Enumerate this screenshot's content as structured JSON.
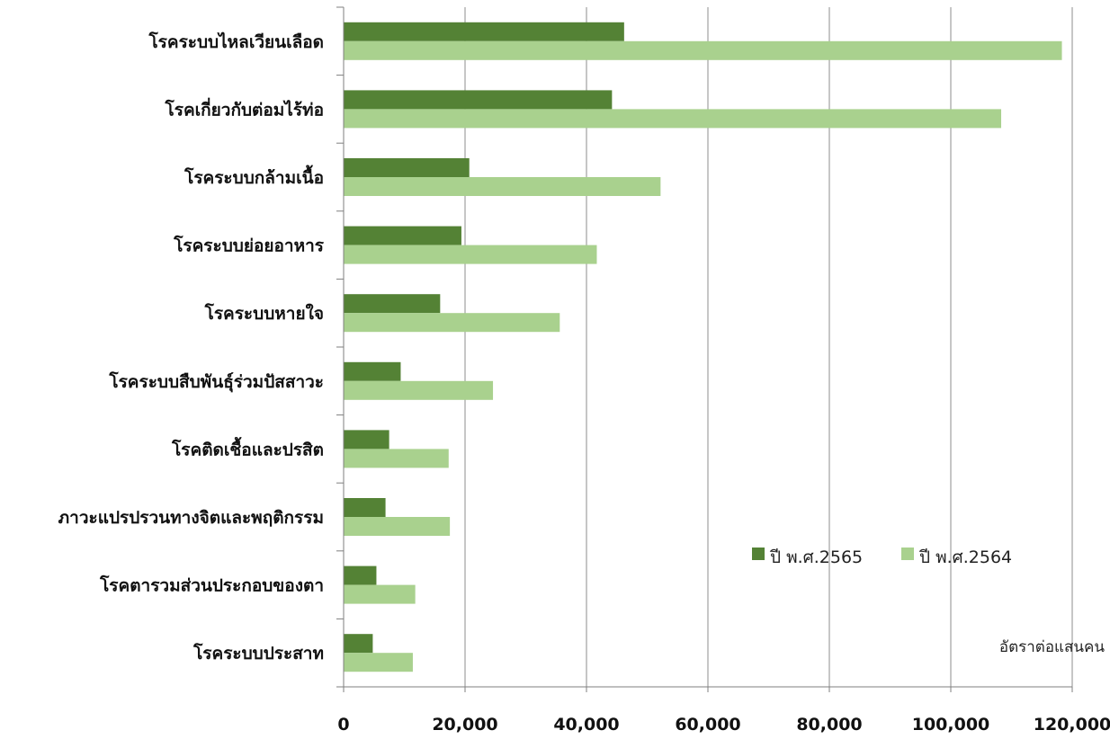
{
  "chart_data": {
    "type": "bar",
    "orientation": "horizontal",
    "categories": [
      "โรคระบบไหลเวียนเลือด",
      "โรคเกี่ยวกับต่อมไร้ท่อ",
      "โรคระบบกล้ามเนื้อ",
      "โรคระบบย่อยอาหาร",
      "โรคระบบหายใจ",
      "โรคระบบสืบพันธุ์ร่วมปัสสาวะ",
      "โรคติดเชื้อและปรสิต",
      "ภาวะแปรปรวนทางจิตและพฤติกรรม",
      "โรคตารวมส่วนประกอบของตา",
      "โรคระบบประสาท"
    ],
    "series": [
      {
        "name": "ปี พ.ศ.2565",
        "color": "#548235",
        "values": [
          46200,
          44200,
          20700,
          19400,
          15900,
          9400,
          7500,
          6900,
          5400,
          4800
        ]
      },
      {
        "name": "ปี พ.ศ.2564",
        "color": "#a9d18e",
        "values": [
          118300,
          108300,
          52200,
          41700,
          35600,
          24600,
          17300,
          17500,
          11800,
          11400
        ]
      }
    ],
    "xlim": [
      0,
      120000
    ],
    "x_ticks": [
      "0",
      "20,000",
      "40,000",
      "60,000",
      "80,000",
      "100,000",
      "120,000"
    ],
    "unit_annotation": "อัตราต่อแสนคน",
    "gridlines": "vertical",
    "legend_position": "lower-right"
  }
}
